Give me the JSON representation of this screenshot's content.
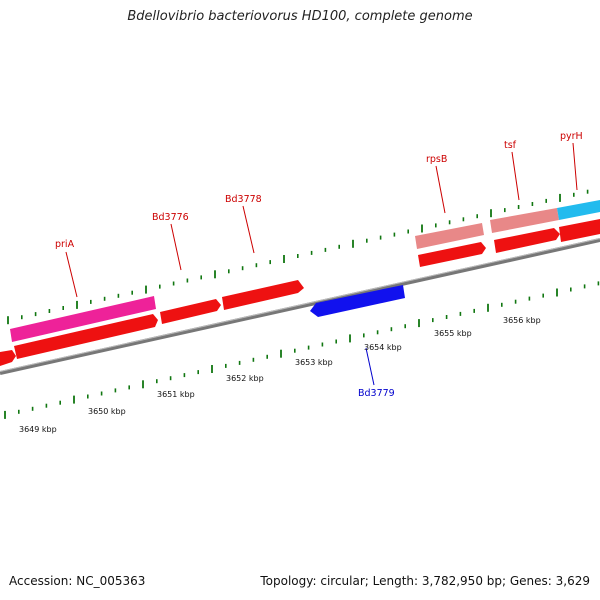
{
  "title": "Bdellovibrio bacteriovorus HD100, complete genome",
  "footer": {
    "accession": "Accession: NC_005363",
    "summary": "Topology: circular; Length: 3,782,950 bp; Genes: 3,629"
  },
  "colors": {
    "cds_red": "#ee1111",
    "pseudo_pink": "#ee2299",
    "rna_salmon": "#e88888",
    "reverse_blue": "#1111ee",
    "cyan": "#22bbee",
    "backbone": "#888888",
    "tick_green": "#117711",
    "label_red": "#cc0000",
    "label_blue": "#0000cc"
  },
  "kbp_labels": [
    "3649 kbp",
    "3650 kbp",
    "3651 kbp",
    "3652 kbp",
    "3653 kbp",
    "3654 kbp",
    "3655 kbp",
    "3656 kbp"
  ],
  "gene_labels": [
    {
      "text": "priA",
      "strand": "forward"
    },
    {
      "text": "Bd3776",
      "strand": "forward"
    },
    {
      "text": "Bd3778",
      "strand": "forward"
    },
    {
      "text": "rpsB",
      "strand": "forward"
    },
    {
      "text": "tsf",
      "strand": "forward"
    },
    {
      "text": "pyrH",
      "strand": "forward"
    },
    {
      "text": "Bd3779",
      "strand": "reverse"
    }
  ]
}
